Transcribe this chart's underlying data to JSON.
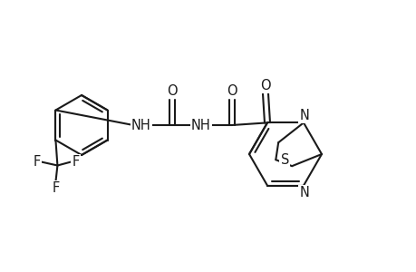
{
  "bg_color": "#ffffff",
  "line_color": "#1a1a1a",
  "lw": 1.5,
  "fs": 10.5,
  "xlim": [
    0,
    460
  ],
  "ylim": [
    0,
    300
  ]
}
